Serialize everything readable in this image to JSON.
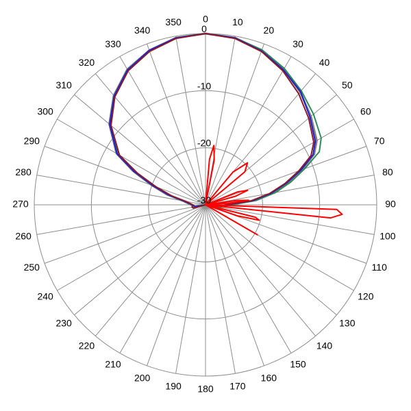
{
  "chart_data": {
    "type": "polar-line",
    "angle_unit": "degrees",
    "angle_zero": "top",
    "angle_direction": "clockwise",
    "angle_ticks": [
      0,
      10,
      20,
      30,
      40,
      50,
      60,
      70,
      80,
      90,
      100,
      110,
      120,
      130,
      140,
      150,
      160,
      170,
      180,
      190,
      200,
      210,
      220,
      230,
      240,
      250,
      260,
      270,
      280,
      290,
      300,
      310,
      320,
      330,
      340,
      350
    ],
    "angle_tick_labels": [
      "0",
      "10",
      "20",
      "30",
      "40",
      "50",
      "60",
      "70",
      "80",
      "90",
      "100",
      "110",
      "120",
      "130",
      "140",
      "150",
      "160",
      "170",
      "180",
      "190",
      "200",
      "210",
      "220",
      "230",
      "240",
      "250",
      "260",
      "270",
      "280",
      "290",
      "300",
      "310",
      "320",
      "330",
      "340",
      "350"
    ],
    "radial_range": [
      -30,
      0
    ],
    "radial_ticks": [
      -30,
      -20,
      -10,
      0
    ],
    "radial_tick_labels": [
      "-30",
      "-20",
      "-10",
      "0"
    ],
    "grid": true,
    "legend": "none",
    "series": [
      {
        "color": "#808080",
        "points": [
          [
            0,
            0
          ],
          [
            10,
            -0.3
          ],
          [
            20,
            -1.2
          ],
          [
            30,
            -2.6
          ],
          [
            40,
            -4.2
          ],
          [
            50,
            -5.9
          ],
          [
            60,
            -7.5
          ],
          [
            65,
            -9
          ],
          [
            70,
            -12
          ],
          [
            75,
            -15
          ],
          [
            80,
            -18
          ],
          [
            85,
            -21.5
          ],
          [
            90,
            -26
          ],
          [
            100,
            -28
          ],
          [
            110,
            -29
          ],
          [
            120,
            -30
          ],
          [
            240,
            -30
          ],
          [
            260,
            -28
          ],
          [
            270,
            -27.5
          ],
          [
            280,
            -26
          ],
          [
            285,
            -23
          ],
          [
            290,
            -20
          ],
          [
            295,
            -16
          ],
          [
            300,
            -12
          ],
          [
            310,
            -8
          ],
          [
            320,
            -5
          ],
          [
            330,
            -2.6
          ],
          [
            340,
            -1.2
          ],
          [
            350,
            -0.3
          ],
          [
            360,
            0
          ]
        ]
      },
      {
        "color": "#2e8b57",
        "points": [
          [
            0,
            0
          ],
          [
            10,
            -0.3
          ],
          [
            20,
            -1.1
          ],
          [
            30,
            -2.4
          ],
          [
            40,
            -3.9
          ],
          [
            50,
            -5.3
          ],
          [
            60,
            -6.6
          ],
          [
            65,
            -8
          ],
          [
            70,
            -11.5
          ],
          [
            75,
            -14.5
          ],
          [
            80,
            -17.5
          ],
          [
            85,
            -21
          ],
          [
            90,
            -25.5
          ],
          [
            100,
            -27.5
          ],
          [
            110,
            -29
          ],
          [
            120,
            -30
          ],
          [
            240,
            -30
          ],
          [
            260,
            -28
          ],
          [
            270,
            -27.6
          ],
          [
            280,
            -26.2
          ],
          [
            285,
            -23.5
          ],
          [
            290,
            -20.5
          ],
          [
            295,
            -16.5
          ],
          [
            300,
            -12.3
          ],
          [
            310,
            -8.2
          ],
          [
            320,
            -5.1
          ],
          [
            330,
            -2.7
          ],
          [
            340,
            -1.3
          ],
          [
            350,
            -0.3
          ],
          [
            360,
            0
          ]
        ]
      },
      {
        "color": "#1f1fcc",
        "points": [
          [
            0,
            0
          ],
          [
            10,
            -0.3
          ],
          [
            20,
            -1.3
          ],
          [
            30,
            -2.7
          ],
          [
            40,
            -4.1
          ],
          [
            50,
            -6.1
          ],
          [
            60,
            -7.8
          ],
          [
            65,
            -9.2
          ],
          [
            70,
            -12.2
          ],
          [
            75,
            -15.3
          ],
          [
            80,
            -18.3
          ],
          [
            85,
            -21.7
          ],
          [
            90,
            -26.2
          ],
          [
            100,
            -28.2
          ],
          [
            110,
            -29.2
          ],
          [
            120,
            -30
          ],
          [
            240,
            -30
          ],
          [
            260,
            -28.2
          ],
          [
            270,
            -27.7
          ],
          [
            280,
            -26.1
          ],
          [
            285,
            -23.2
          ],
          [
            290,
            -20.2
          ],
          [
            295,
            -16.2
          ],
          [
            300,
            -12.1
          ],
          [
            310,
            -8.1
          ],
          [
            320,
            -5.1
          ],
          [
            330,
            -2.7
          ],
          [
            340,
            -1.2
          ],
          [
            350,
            -0.3
          ],
          [
            360,
            0
          ]
        ]
      },
      {
        "color": "#8b1a2b",
        "points": [
          [
            0,
            0
          ],
          [
            10,
            -0.4
          ],
          [
            20,
            -1.4
          ],
          [
            30,
            -2.9
          ],
          [
            40,
            -4.6
          ],
          [
            50,
            -6.4
          ],
          [
            60,
            -8.1
          ],
          [
            65,
            -9.6
          ],
          [
            70,
            -12.6
          ],
          [
            75,
            -15.6
          ],
          [
            80,
            -18.6
          ],
          [
            85,
            -22
          ],
          [
            90,
            -26.4
          ],
          [
            100,
            -28.4
          ],
          [
            110,
            -29.3
          ],
          [
            120,
            -30
          ],
          [
            240,
            -30
          ],
          [
            255,
            -27.8
          ],
          [
            260,
            -27.6
          ],
          [
            270,
            -27.8
          ],
          [
            280,
            -26.5
          ],
          [
            285,
            -23.8
          ],
          [
            290,
            -20.8
          ],
          [
            295,
            -16.8
          ],
          [
            300,
            -12.6
          ],
          [
            310,
            -8.4
          ],
          [
            320,
            -5.3
          ],
          [
            330,
            -2.9
          ],
          [
            340,
            -1.4
          ],
          [
            350,
            -0.4
          ],
          [
            360,
            0
          ]
        ]
      },
      {
        "color": "#ff0000",
        "points": [
          [
            0,
            -30
          ],
          [
            5,
            -22
          ],
          [
            8,
            -19.5
          ],
          [
            11,
            -22
          ],
          [
            15,
            -30
          ],
          [
            30,
            -30
          ],
          [
            40,
            -22.5
          ],
          [
            45,
            -19.6
          ],
          [
            50,
            -21
          ],
          [
            55,
            -30
          ],
          [
            65,
            -30
          ],
          [
            68,
            -24
          ],
          [
            71,
            -22.2
          ],
          [
            74,
            -24.5
          ],
          [
            77,
            -30
          ],
          [
            79,
            -30
          ],
          [
            82,
            -24.5
          ],
          [
            84,
            -22.4
          ],
          [
            86,
            -26
          ],
          [
            87.5,
            -30
          ],
          [
            89,
            -30
          ],
          [
            92,
            -7
          ],
          [
            94,
            -6
          ],
          [
            96,
            -8
          ],
          [
            98,
            -30
          ],
          [
            101,
            -30
          ],
          [
            104,
            -21
          ],
          [
            106,
            -20.2
          ],
          [
            109,
            -24
          ],
          [
            112,
            -30
          ],
          [
            115,
            -30
          ],
          [
            120,
            -19.5
          ],
          [
            125,
            -30
          ],
          [
            360,
            -30
          ]
        ]
      }
    ]
  }
}
